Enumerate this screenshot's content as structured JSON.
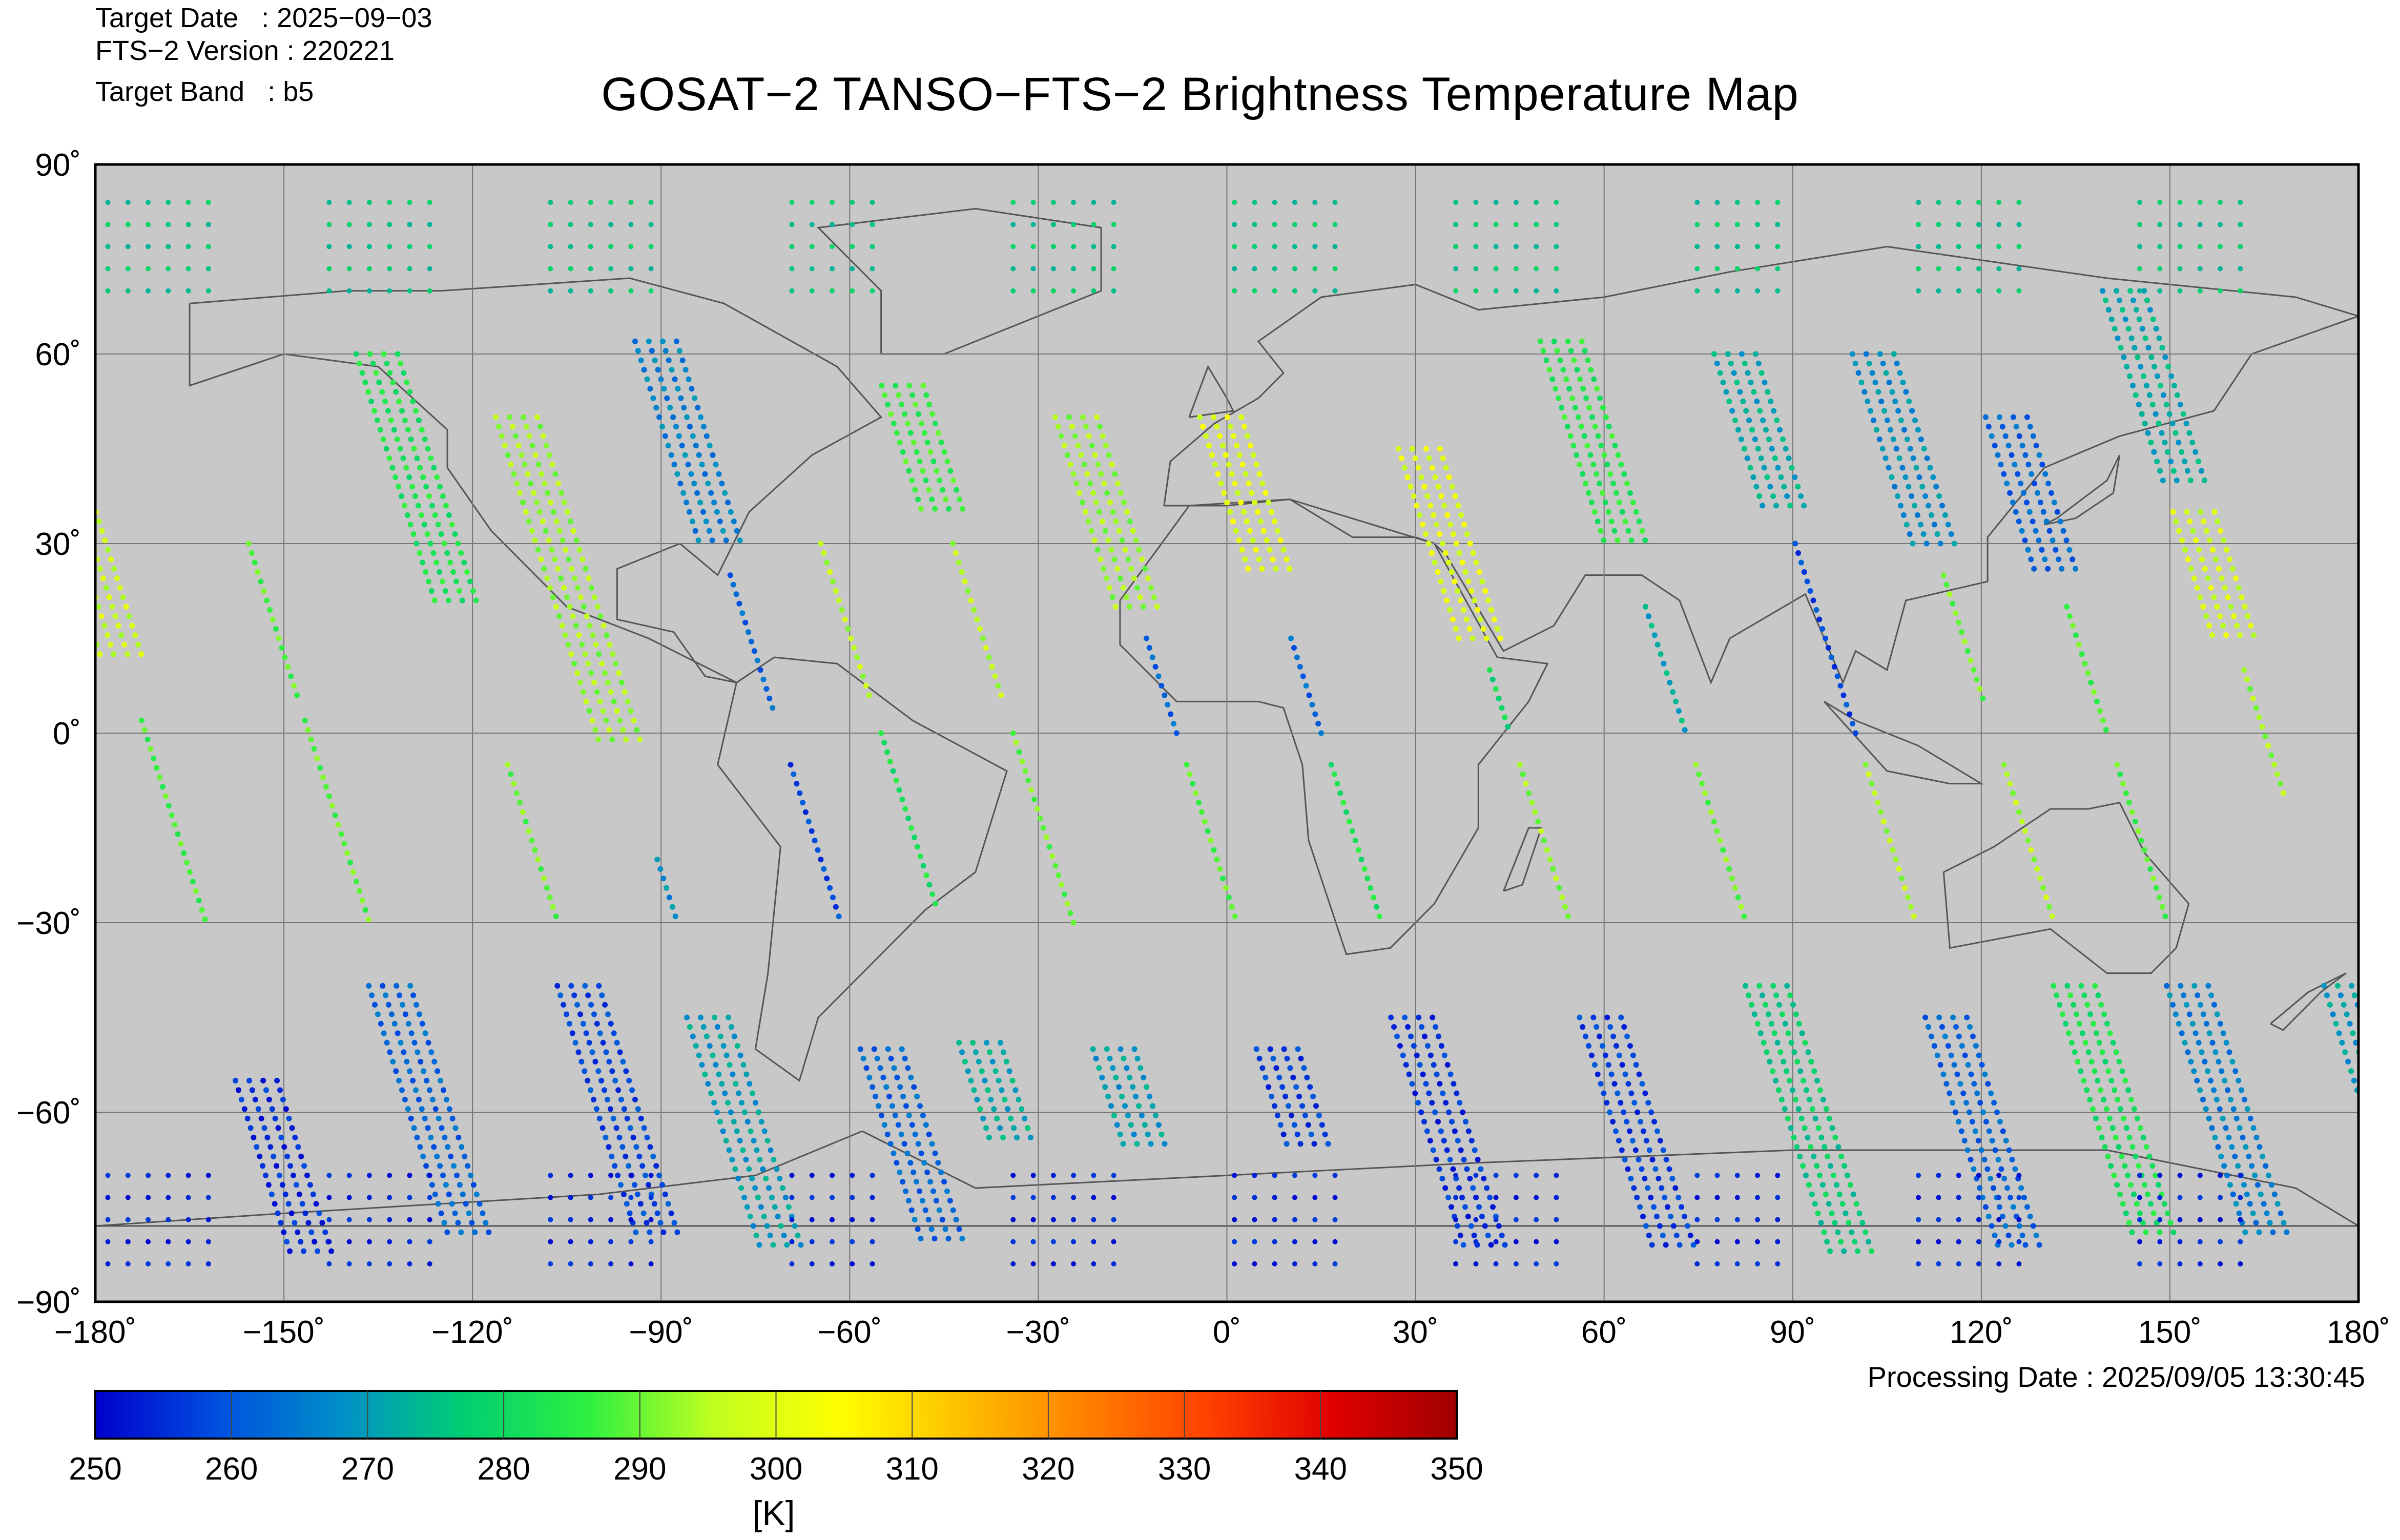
{
  "header": {
    "target_date": "Target Date   : 2025−09−03",
    "fts_version": "FTS−2 Version : 220221",
    "target_band": "Target Band   : b5",
    "title": "GOSAT−2 TANSO−FTS−2 Brightness Temperature Map"
  },
  "map": {
    "projection": "equirectangular",
    "background_color": "#c8c8c8",
    "coastline_color": "#555555",
    "grid": true,
    "lon_ticks": [
      {
        "value": -180,
        "label": "−180˚"
      },
      {
        "value": -150,
        "label": "−150˚"
      },
      {
        "value": -120,
        "label": "−120˚"
      },
      {
        "value": -90,
        "label": "−90˚"
      },
      {
        "value": -60,
        "label": "−60˚"
      },
      {
        "value": -30,
        "label": "−30˚"
      },
      {
        "value": 0,
        "label": "0˚"
      },
      {
        "value": 30,
        "label": "30˚"
      },
      {
        "value": 60,
        "label": "60˚"
      },
      {
        "value": 90,
        "label": "90˚"
      },
      {
        "value": 120,
        "label": "120˚"
      },
      {
        "value": 150,
        "label": "150˚"
      },
      {
        "value": 180,
        "label": "180˚"
      }
    ],
    "lat_ticks": [
      {
        "value": 90,
        "label": "90˚"
      },
      {
        "value": 60,
        "label": "60˚"
      },
      {
        "value": 30,
        "label": "30˚"
      },
      {
        "value": 0,
        "label": "0˚"
      },
      {
        "value": -30,
        "label": "−30˚"
      },
      {
        "value": -60,
        "label": "−60˚"
      },
      {
        "value": -90,
        "label": "−90˚"
      }
    ]
  },
  "chart_data": {
    "type": "scatter",
    "value_name": "Brightness Temperature",
    "lon_range": [
      -180,
      180
    ],
    "lat_range": [
      -90,
      90
    ],
    "orbit_tracks": [
      {
        "lon_equator": -172,
        "segments": [
          {
            "lat_from": 50,
            "lat_to": 12,
            "value": 297
          },
          {
            "lat_from": 2,
            "lat_to": -30,
            "value": 287
          },
          {
            "lat_from": -55,
            "lat_to": -82,
            "value": 255
          }
        ]
      },
      {
        "lon_equator": -146,
        "segments": [
          {
            "lat_from": 30,
            "lat_to": 5,
            "value": 288
          },
          {
            "lat_from": 2,
            "lat_to": -30,
            "value": 289
          },
          {
            "lat_from": -40,
            "lat_to": -80,
            "value": 262
          }
        ]
      },
      {
        "lon_equator": -116,
        "segments": [
          {
            "lat_from": 60,
            "lat_to": 20,
            "value": 283
          },
          {
            "lat_from": -5,
            "lat_to": -30,
            "value": 290
          },
          {
            "lat_from": -40,
            "lat_to": -80,
            "value": 258
          }
        ]
      },
      {
        "lon_equator": -97,
        "segments": [
          {
            "lat_from": 50,
            "lat_to": -2,
            "value": 293
          },
          {
            "lat_from": -20,
            "lat_to": -30,
            "value": 268
          },
          {
            "lat_from": -45,
            "lat_to": -82,
            "value": 270
          }
        ]
      },
      {
        "lon_equator": -71,
        "segments": [
          {
            "lat_from": 62,
            "lat_to": 30,
            "value": 266
          },
          {
            "lat_from": 25,
            "lat_to": 4,
            "value": 262
          },
          {
            "lat_from": -5,
            "lat_to": -30,
            "value": 258
          },
          {
            "lat_from": -50,
            "lat_to": -80,
            "value": 262
          }
        ]
      },
      {
        "lon_equator": -55,
        "segments": [
          {
            "lat_from": 30,
            "lat_to": 5,
            "value": 295
          },
          {
            "lat_from": 0,
            "lat_to": -28,
            "value": 282
          },
          {
            "lat_from": -49,
            "lat_to": -65,
            "value": 272
          }
        ]
      },
      {
        "lon_equator": -34,
        "segments": [
          {
            "lat_from": 55,
            "lat_to": 35,
            "value": 286
          },
          {
            "lat_from": 30,
            "lat_to": 5,
            "value": 295
          },
          {
            "lat_from": 0,
            "lat_to": -30,
            "value": 290
          },
          {
            "lat_from": -50,
            "lat_to": -65,
            "value": 270
          }
        ]
      },
      {
        "lon_equator": -8,
        "segments": [
          {
            "lat_from": 50,
            "lat_to": 20,
            "value": 293
          },
          {
            "lat_from": 15,
            "lat_to": 0,
            "value": 262
          },
          {
            "lat_from": -5,
            "lat_to": -30,
            "value": 288
          },
          {
            "lat_from": -50,
            "lat_to": -65,
            "value": 257
          }
        ]
      },
      {
        "lon_equator": 15,
        "segments": [
          {
            "lat_from": 50,
            "lat_to": 25,
            "value": 300
          },
          {
            "lat_from": 15,
            "lat_to": 0,
            "value": 262
          },
          {
            "lat_from": -5,
            "lat_to": -30,
            "value": 283
          },
          {
            "lat_from": -45,
            "lat_to": -82,
            "value": 256
          }
        ]
      },
      {
        "lon_equator": 45,
        "segments": [
          {
            "lat_from": 45,
            "lat_to": 15,
            "value": 300
          },
          {
            "lat_from": 10,
            "lat_to": 0,
            "value": 280
          },
          {
            "lat_from": -5,
            "lat_to": -30,
            "value": 292
          },
          {
            "lat_from": -45,
            "lat_to": -82,
            "value": 257
          }
        ]
      },
      {
        "lon_equator": 73,
        "segments": [
          {
            "lat_from": 62,
            "lat_to": 30,
            "value": 284
          },
          {
            "lat_from": 20,
            "lat_to": 0,
            "value": 272
          },
          {
            "lat_from": -5,
            "lat_to": -30,
            "value": 290
          },
          {
            "lat_from": -40,
            "lat_to": -82,
            "value": 277
          }
        ]
      },
      {
        "lon_equator": 100,
        "segments": [
          {
            "lat_from": 60,
            "lat_to": 35,
            "value": 272
          },
          {
            "lat_from": 30,
            "lat_to": 0,
            "value": 258
          },
          {
            "lat_from": -5,
            "lat_to": -30,
            "value": 294
          },
          {
            "lat_from": -45,
            "lat_to": -82,
            "value": 262
          }
        ]
      },
      {
        "lon_equator": 122,
        "segments": [
          {
            "lat_from": 60,
            "lat_to": 30,
            "value": 268
          },
          {
            "lat_from": 25,
            "lat_to": 5,
            "value": 290
          },
          {
            "lat_from": -5,
            "lat_to": -30,
            "value": 294
          },
          {
            "lat_from": -40,
            "lat_to": -80,
            "value": 282
          }
        ]
      },
      {
        "lon_equator": 140,
        "segments": [
          {
            "lat_from": 50,
            "lat_to": 25,
            "value": 262
          },
          {
            "lat_from": 20,
            "lat_to": 0,
            "value": 288
          },
          {
            "lat_from": -5,
            "lat_to": -30,
            "value": 288
          },
          {
            "lat_from": -40,
            "lat_to": -80,
            "value": 266
          }
        ]
      },
      {
        "lon_equator": 165,
        "segments": [
          {
            "lat_from": 70,
            "lat_to": 40,
            "value": 272
          },
          {
            "lat_from": 35,
            "lat_to": 15,
            "value": 298
          },
          {
            "lat_from": 10,
            "lat_to": -10,
            "value": 293
          },
          {
            "lat_from": -40,
            "lat_to": -80,
            "value": 270
          }
        ]
      }
    ],
    "polar_cells": [
      {
        "lat_band": [
          70,
          84
        ],
        "value": 276
      },
      {
        "lat_band": [
          -84,
          -70
        ],
        "value": 254
      }
    ]
  },
  "colorbar": {
    "min": 250,
    "max": 350,
    "tick_labels": [
      "250",
      "260",
      "270",
      "280",
      "290",
      "300",
      "310",
      "320",
      "330",
      "340",
      "350"
    ],
    "unit_label": "[K]",
    "colormap": [
      "#0000cc",
      "#0050e0",
      "#0090c8",
      "#00d070",
      "#30f040",
      "#c0ff20",
      "#ffff00",
      "#ffc000",
      "#ff8000",
      "#ff4000",
      "#e00000",
      "#a00000"
    ]
  },
  "footer": {
    "processing_date": "Processing Date : 2025/09/05 13:30:45"
  }
}
